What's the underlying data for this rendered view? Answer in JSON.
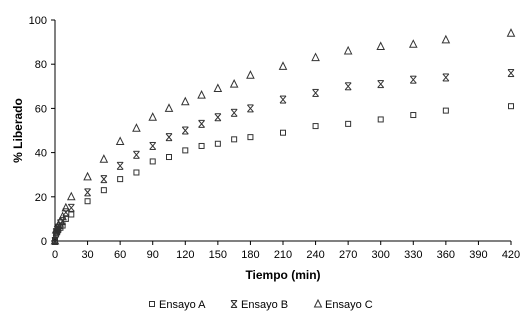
{
  "chart_data": {
    "type": "scatter",
    "xlabel": "Tiempo (min)",
    "ylabel": "% Liberado",
    "xlim": [
      0,
      420
    ],
    "ylim": [
      0,
      100
    ],
    "xticks": [
      0,
      30,
      60,
      90,
      120,
      150,
      180,
      210,
      240,
      270,
      300,
      330,
      360,
      390,
      420
    ],
    "yticks": [
      0,
      20,
      40,
      60,
      80,
      100
    ],
    "grid": false,
    "legend_position": "bottom",
    "series": [
      {
        "name": "Ensayo A",
        "marker": "square",
        "x": [
          0,
          1,
          2,
          3,
          5,
          7,
          10,
          15,
          30,
          45,
          60,
          75,
          90,
          105,
          120,
          135,
          150,
          165,
          180,
          210,
          240,
          270,
          300,
          330,
          360,
          420
        ],
        "y": [
          0,
          3,
          4,
          5,
          6,
          7,
          10,
          12,
          18,
          23,
          28,
          31,
          36,
          38,
          41,
          43,
          44,
          46,
          47,
          49,
          52,
          53,
          55,
          57,
          59,
          61
        ]
      },
      {
        "name": "Ensayo B",
        "marker": "x",
        "x": [
          0,
          1,
          2,
          3,
          5,
          7,
          10,
          15,
          30,
          45,
          60,
          75,
          90,
          105,
          120,
          135,
          150,
          165,
          180,
          210,
          240,
          270,
          300,
          330,
          360,
          420
        ],
        "y": [
          0,
          4,
          5,
          6,
          8,
          9,
          13,
          15,
          22,
          28,
          34,
          39,
          43,
          47,
          50,
          53,
          56,
          58,
          60,
          64,
          67,
          70,
          71,
          73,
          74,
          76
        ]
      },
      {
        "name": "Ensayo C",
        "marker": "triangle",
        "x": [
          0,
          1,
          2,
          3,
          5,
          7,
          10,
          15,
          30,
          45,
          60,
          75,
          90,
          105,
          120,
          135,
          150,
          165,
          180,
          210,
          240,
          270,
          300,
          330,
          360,
          420
        ],
        "y": [
          0,
          5,
          6,
          7,
          9,
          11,
          15,
          20,
          29,
          37,
          45,
          51,
          56,
          60,
          63,
          66,
          69,
          71,
          75,
          79,
          83,
          86,
          88,
          89,
          91,
          94
        ]
      }
    ]
  }
}
